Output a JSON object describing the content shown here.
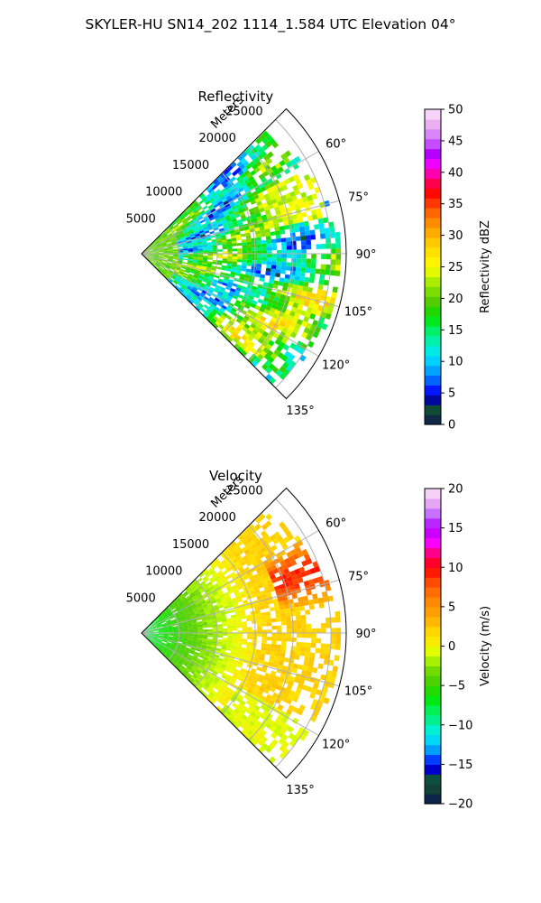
{
  "figure": {
    "suptitle": "SKYLER-HU  SN14_202  1114_1.584 UTC Elevation 04°"
  },
  "colors": {
    "axis": "#000000",
    "grid": "#b0b0b0"
  },
  "chart_data": [
    {
      "type": "heatmap",
      "projection": "polar-sector",
      "title": "Reflectivity",
      "radial_label": "Meters",
      "radial_ticks": [
        "5000",
        "10000",
        "15000",
        "20000",
        "25000"
      ],
      "radial_tick_values": [
        5000,
        10000,
        15000,
        20000,
        25000
      ],
      "radial_range": [
        0,
        27000
      ],
      "angle_ticks": [
        "60°",
        "75°",
        "90°",
        "105°",
        "120°",
        "135°"
      ],
      "angle_tick_values": [
        60,
        75,
        90,
        105,
        120,
        135
      ],
      "angle_range": [
        45,
        135
      ],
      "grid": true,
      "colorbar": {
        "label": "Reflectivity dBZ",
        "range": [
          0,
          50
        ],
        "ticks": [
          "0",
          "5",
          "10",
          "15",
          "20",
          "25",
          "30",
          "35",
          "40",
          "45",
          "50"
        ],
        "tick_values": [
          0,
          5,
          10,
          15,
          20,
          25,
          30,
          35,
          40,
          45,
          50
        ],
        "stops": [
          {
            "v": 0,
            "c": "#0a1454"
          },
          {
            "v": 1.5,
            "c": "#123a3a"
          },
          {
            "v": 3,
            "c": "#0e5a2e"
          },
          {
            "v": 4,
            "c": "#0000aa"
          },
          {
            "v": 5,
            "c": "#0000ff"
          },
          {
            "v": 7,
            "c": "#0064ff"
          },
          {
            "v": 9,
            "c": "#00b4ff"
          },
          {
            "v": 11,
            "c": "#00e6ff"
          },
          {
            "v": 13,
            "c": "#00f0b4"
          },
          {
            "v": 15,
            "c": "#00f064"
          },
          {
            "v": 17,
            "c": "#00e600"
          },
          {
            "v": 19,
            "c": "#46c800"
          },
          {
            "v": 21,
            "c": "#78dc00"
          },
          {
            "v": 23,
            "c": "#b4f000"
          },
          {
            "v": 25,
            "c": "#ffff00"
          },
          {
            "v": 27,
            "c": "#ffe600"
          },
          {
            "v": 29,
            "c": "#ffc800"
          },
          {
            "v": 31,
            "c": "#ffa000"
          },
          {
            "v": 33,
            "c": "#ff7800"
          },
          {
            "v": 35,
            "c": "#ff3c00"
          },
          {
            "v": 37,
            "c": "#ff0000"
          },
          {
            "v": 39,
            "c": "#ff0078"
          },
          {
            "v": 41,
            "c": "#ff00ff"
          },
          {
            "v": 43,
            "c": "#b400ff"
          },
          {
            "v": 45,
            "c": "#c864ff"
          },
          {
            "v": 47,
            "c": "#e6a0f0"
          },
          {
            "v": 50,
            "c": "#fae6fa"
          }
        ]
      },
      "field_summary": {
        "min_range_m": 0,
        "max_range_m": 27000,
        "dominant_values_dbz": [
          14,
          22
        ],
        "core": {
          "azimuth_deg": [
            62,
            78
          ],
          "range_m": [
            17000,
            25000
          ],
          "value_dbz": 24
        }
      }
    },
    {
      "type": "heatmap",
      "projection": "polar-sector",
      "title": "Velocity",
      "radial_label": "Meters",
      "radial_ticks": [
        "5000",
        "10000",
        "15000",
        "20000",
        "25000"
      ],
      "radial_tick_values": [
        5000,
        10000,
        15000,
        20000,
        25000
      ],
      "radial_range": [
        0,
        27000
      ],
      "angle_ticks": [
        "60°",
        "75°",
        "90°",
        "105°",
        "120°",
        "135°"
      ],
      "angle_tick_values": [
        60,
        75,
        90,
        105,
        120,
        135
      ],
      "angle_range": [
        45,
        135
      ],
      "grid": true,
      "colorbar": {
        "label": "Velocity (m/s)",
        "range": [
          -20,
          20
        ],
        "ticks": [
          "−20",
          "−15",
          "−10",
          "−5",
          "0",
          "5",
          "10",
          "15",
          "20"
        ],
        "tick_values": [
          -20,
          -15,
          -10,
          -5,
          0,
          5,
          10,
          15,
          20
        ],
        "stops": [
          {
            "v": -20,
            "c": "#0a1454"
          },
          {
            "v": -18.5,
            "c": "#123a3a"
          },
          {
            "v": -17,
            "c": "#0e5a2e"
          },
          {
            "v": -16,
            "c": "#0000aa"
          },
          {
            "v": -15,
            "c": "#0000ff"
          },
          {
            "v": -14,
            "c": "#0064ff"
          },
          {
            "v": -12.5,
            "c": "#00c8ff"
          },
          {
            "v": -11,
            "c": "#00f0e6"
          },
          {
            "v": -9.5,
            "c": "#00f096"
          },
          {
            "v": -8,
            "c": "#00f050"
          },
          {
            "v": -6.5,
            "c": "#00e600"
          },
          {
            "v": -5,
            "c": "#3cd200"
          },
          {
            "v": -3.5,
            "c": "#64d200"
          },
          {
            "v": -2,
            "c": "#a0f000"
          },
          {
            "v": -0.5,
            "c": "#e6ff00"
          },
          {
            "v": 1,
            "c": "#ffe600"
          },
          {
            "v": 2.5,
            "c": "#ffc800"
          },
          {
            "v": 4,
            "c": "#ffa500"
          },
          {
            "v": 6,
            "c": "#ff8200"
          },
          {
            "v": 8,
            "c": "#ff5000"
          },
          {
            "v": 10,
            "c": "#ff0000"
          },
          {
            "v": 11.5,
            "c": "#ff0064"
          },
          {
            "v": 13,
            "c": "#ff00ff"
          },
          {
            "v": 15,
            "c": "#b400ff"
          },
          {
            "v": 17,
            "c": "#c878ff"
          },
          {
            "v": 18.5,
            "c": "#f0b4f0"
          },
          {
            "v": 20,
            "c": "#fae6fa"
          }
        ]
      },
      "field_summary": {
        "min_range_m": 0,
        "max_range_m": 27000,
        "near_range_value_ms": -8,
        "far_range_value_ms": 2,
        "core": {
          "azimuth_deg": [
            58,
            80
          ],
          "range_m": [
            18000,
            26000
          ],
          "value_ms": 9
        }
      }
    }
  ]
}
